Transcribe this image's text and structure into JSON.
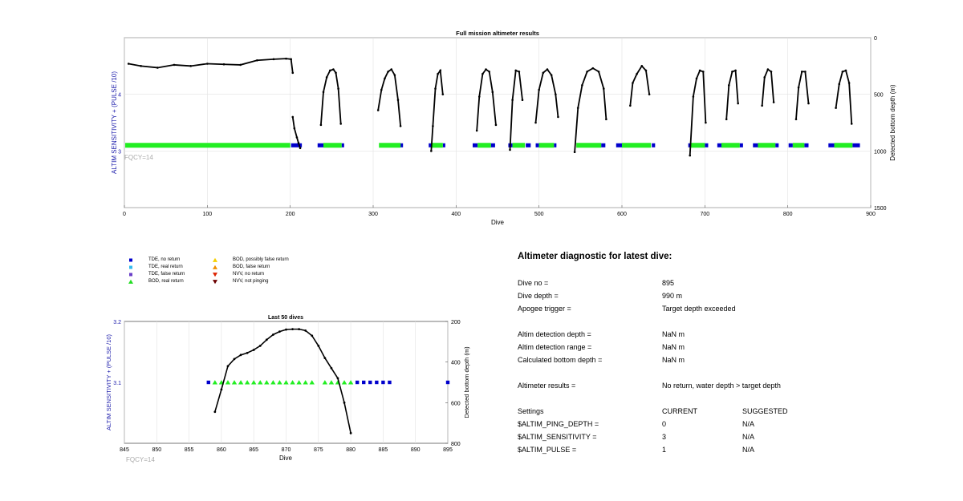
{
  "chart_data": [
    {
      "type": "scatter",
      "title": "Full mission altimeter results",
      "xlabel": "Dive",
      "ylabel_left": "ALTIM SENSITIVITY + (PULSE /10)",
      "ylabel_right": "Detected bottom depth (m)",
      "xlim": [
        0,
        900
      ],
      "ylim_left": [
        2,
        5
      ],
      "ylim_right": [
        0,
        1500
      ],
      "right_axis_reversed": true,
      "x_ticks": [
        "0",
        "100",
        "200",
        "300",
        "400",
        "500",
        "600",
        "700",
        "800",
        "900"
      ],
      "y_left_ticks": [
        "3",
        "4"
      ],
      "y_right_ticks": [
        "0",
        "500",
        "1000",
        "1500"
      ],
      "grid": true,
      "annotation": "FQCY=14",
      "sensitivity_value": 3.1,
      "depth_series": [
        {
          "x": [
            5,
            20,
            40,
            60,
            80,
            100,
            120,
            140,
            160,
            180,
            195,
            201,
            203
          ],
          "y": [
            230,
            250,
            265,
            240,
            250,
            230,
            235,
            240,
            200,
            190,
            185,
            190,
            310
          ]
        },
        {
          "x": [
            203,
            205,
            208,
            210,
            212
          ],
          "y": [
            700,
            800,
            880,
            930,
            975
          ]
        },
        {
          "x": [
            237,
            240,
            244,
            248,
            252,
            255,
            258,
            261
          ],
          "y": [
            770,
            480,
            350,
            290,
            280,
            310,
            450,
            760
          ]
        },
        {
          "x": [
            306,
            310,
            314,
            318,
            322,
            326,
            330,
            333
          ],
          "y": [
            640,
            460,
            360,
            300,
            280,
            330,
            550,
            780
          ]
        },
        {
          "x": [
            370,
            372,
            375,
            378,
            381,
            384
          ],
          "y": [
            1000,
            780,
            450,
            320,
            290,
            500
          ]
        },
        {
          "x": [
            425,
            428,
            432,
            436,
            440,
            444,
            448
          ],
          "y": [
            820,
            520,
            320,
            280,
            300,
            480,
            770
          ]
        },
        {
          "x": [
            465,
            468,
            472,
            476,
            480
          ],
          "y": [
            990,
            550,
            290,
            300,
            550
          ]
        },
        {
          "x": [
            496,
            500,
            505,
            510,
            515,
            520,
            523
          ],
          "y": [
            750,
            460,
            310,
            280,
            330,
            500,
            700
          ]
        },
        {
          "x": [
            543,
            547,
            552,
            558,
            565,
            572,
            578,
            581
          ],
          "y": [
            1010,
            620,
            420,
            300,
            270,
            300,
            450,
            720
          ]
        },
        {
          "x": [
            610,
            613,
            618,
            624,
            629,
            633
          ],
          "y": [
            600,
            400,
            320,
            250,
            290,
            500
          ]
        },
        {
          "x": [
            682,
            686,
            690,
            694,
            698,
            701
          ],
          "y": [
            1040,
            520,
            360,
            290,
            300,
            750
          ]
        },
        {
          "x": [
            726,
            729,
            733,
            737,
            740
          ],
          "y": [
            720,
            420,
            300,
            290,
            580
          ]
        },
        {
          "x": [
            769,
            772,
            776,
            780,
            783
          ],
          "y": [
            600,
            350,
            280,
            300,
            570
          ]
        },
        {
          "x": [
            810,
            813,
            817,
            821,
            825
          ],
          "y": [
            720,
            440,
            300,
            300,
            580
          ]
        },
        {
          "x": [
            858,
            862,
            866,
            870,
            874,
            877
          ],
          "y": [
            620,
            410,
            300,
            290,
            400,
            760
          ]
        }
      ],
      "green_segments": [
        [
          1,
          200
        ],
        [
          240,
          262
        ],
        [
          307,
          333
        ],
        [
          371,
          384
        ],
        [
          426,
          442
        ],
        [
          468,
          483
        ],
        [
          500,
          518
        ],
        [
          545,
          575
        ],
        [
          600,
          635
        ],
        [
          683,
          700
        ],
        [
          720,
          742
        ],
        [
          764,
          785
        ],
        [
          806,
          820
        ],
        [
          856,
          878
        ]
      ],
      "blue_segments": [
        [
          201,
          214
        ],
        [
          233,
          240
        ],
        [
          262,
          265
        ],
        [
          333,
          336
        ],
        [
          367,
          371
        ],
        [
          384,
          387
        ],
        [
          420,
          426
        ],
        [
          442,
          447
        ],
        [
          463,
          468
        ],
        [
          484,
          490
        ],
        [
          496,
          500
        ],
        [
          518,
          521
        ],
        [
          575,
          580
        ],
        [
          593,
          600
        ],
        [
          636,
          640
        ],
        [
          680,
          683
        ],
        [
          700,
          704
        ],
        [
          715,
          720
        ],
        [
          742,
          746
        ],
        [
          758,
          764
        ],
        [
          785,
          789
        ],
        [
          801,
          806
        ],
        [
          820,
          825
        ],
        [
          849,
          856
        ],
        [
          878,
          887
        ]
      ]
    },
    {
      "type": "scatter",
      "title": "Last 50 dives",
      "xlabel": "Dive",
      "ylabel_left": "ALTIM SENSITIVITY + (PULSE /10)",
      "ylabel_right": "Detected bottom depth (m)",
      "xlim": [
        845,
        895
      ],
      "ylim_left": [
        3,
        3.2
      ],
      "ylim_right": [
        200,
        800
      ],
      "right_axis_reversed": true,
      "x_ticks": [
        "845",
        "850",
        "855",
        "860",
        "865",
        "870",
        "875",
        "880",
        "885",
        "890",
        "895"
      ],
      "y_left_ticks": [
        "3.1",
        "3.2"
      ],
      "y_right_ticks": [
        "200",
        "400",
        "600",
        "800"
      ],
      "grid": true,
      "annotation": "FQCY=14",
      "depth_x": [
        859,
        860,
        861,
        862,
        863,
        864,
        865,
        866,
        867,
        868,
        869,
        870,
        871,
        872,
        873,
        874,
        875,
        876,
        877,
        878,
        879,
        880
      ],
      "depth_y": [
        645,
        535,
        420,
        385,
        365,
        355,
        340,
        320,
        290,
        265,
        250,
        240,
        238,
        238,
        245,
        270,
        320,
        380,
        430,
        480,
        600,
        750
      ],
      "bod_real_x": [
        859,
        860,
        861,
        862,
        863,
        864,
        865,
        866,
        867,
        868,
        869,
        870,
        871,
        872,
        873,
        874,
        876,
        877,
        878,
        879,
        880
      ],
      "tde_no_return_x": [
        858,
        881,
        882,
        883,
        884,
        885,
        886,
        895
      ],
      "sensitivity_value": 3.1
    }
  ],
  "legend": [
    {
      "label": "TDE, no return",
      "symbol": "square",
      "color": "#0000cc"
    },
    {
      "label": "TDE, real return",
      "symbol": "square",
      "color": "#33bbee"
    },
    {
      "label": "TDE, false return",
      "symbol": "square",
      "color": "#6a3fc8"
    },
    {
      "label": "BOD, real return",
      "symbol": "triangle-up",
      "color": "#22dd22"
    },
    {
      "label": "BOD, possibly false return",
      "symbol": "triangle-up",
      "color": "#f5d000"
    },
    {
      "label": "BOD, false return",
      "symbol": "triangle-up",
      "color": "#f09000"
    },
    {
      "label": "NVV, no return",
      "symbol": "triangle-down",
      "color": "#dd2200"
    },
    {
      "label": "NVV, not pinging",
      "symbol": "triangle-down",
      "color": "#6b0000"
    }
  ],
  "diagnostic": {
    "title": "Altimeter diagnostic for latest dive:",
    "rows": [
      {
        "label": "Dive no =",
        "value": "895"
      },
      {
        "label": "Dive depth =",
        "value": "990 m"
      },
      {
        "label": "Apogee trigger =",
        "value": "Target depth exceeded"
      },
      {
        "label": "Altim detection depth =",
        "value": "NaN m"
      },
      {
        "label": "Altim detection range =",
        "value": "NaN m"
      },
      {
        "label": "Calculated bottom depth =",
        "value": "NaN m"
      },
      {
        "label": "Altimeter results =",
        "value": "No return, water depth > target depth"
      }
    ],
    "settings_header": {
      "label": "Settings",
      "current": "CURRENT",
      "suggested": "SUGGESTED"
    },
    "settings": [
      {
        "label": "$ALTIM_PING_DEPTH =",
        "current": "0",
        "suggested": "N/A"
      },
      {
        "label": "$ALTIM_SENSITIVITY =",
        "current": "3",
        "suggested": "N/A"
      },
      {
        "label": "$ALTIM_PULSE =",
        "current": "1",
        "suggested": "N/A"
      }
    ]
  },
  "colors": {
    "axis_left": "#1a1aaa",
    "green": "#22ee22",
    "blue": "#0000cc",
    "grid": "#e2e2e2",
    "annotation": "#aaaaaa"
  }
}
